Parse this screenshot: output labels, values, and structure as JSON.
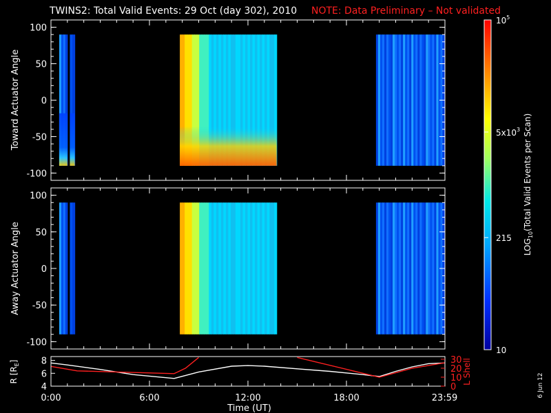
{
  "title": {
    "main": "TWINS2: Total Valid Events: 29 Oct (day 302), 2010",
    "note": "NOTE: Data Preliminary – Not validated",
    "note_color": "#ff2020"
  },
  "stamp": "6 Jun 12",
  "chart_data": [
    {
      "type": "heatmap",
      "ylabel": "Toward Actuator Angle",
      "ylim": [
        -110,
        110
      ],
      "yticks": [
        "100",
        "50",
        "0",
        "-50",
        "-100"
      ],
      "y_range_of_data": [
        -90,
        90
      ],
      "data_intervals_hours": [
        [
          0.5,
          1.0
        ],
        [
          1.15,
          1.45
        ],
        [
          7.85,
          13.75
        ],
        [
          19.8,
          23.98
        ]
      ],
      "level_note": "log10 counts; edges near -90 reach ~1e4-1e5 in the 8-14 UT interval"
    },
    {
      "type": "heatmap",
      "ylabel": "Away Actuator Angle",
      "ylim": [
        -110,
        110
      ],
      "yticks": [
        "100",
        "50",
        "0",
        "-50",
        "-100"
      ],
      "y_range_of_data": [
        -90,
        90
      ],
      "data_intervals_hours": [
        [
          0.5,
          1.0
        ],
        [
          1.15,
          1.45
        ],
        [
          7.85,
          13.75
        ],
        [
          19.8,
          23.98
        ]
      ]
    },
    {
      "type": "line",
      "ylabel_left": "R [R",
      "ylabel_left_sub": "E",
      "ylabel_left_end": "]",
      "ylabel_right": "L Shell",
      "ylim_left": [
        4,
        8.6
      ],
      "yticks_left": [
        "8",
        "6",
        "4"
      ],
      "ylim_right": [
        0,
        33
      ],
      "yticks_right": [
        "30",
        "20",
        "10",
        "0"
      ],
      "xlabel": "Time (UT)",
      "xticks": [
        "0:00",
        "6:00",
        "12:00",
        "18:00",
        "23:59"
      ],
      "xtick_values": [
        0,
        6,
        12,
        18,
        23.98
      ],
      "series": [
        {
          "color": "#ffffff",
          "x": [
            0,
            1,
            3,
            5,
            7.5,
            9,
            11,
            12,
            13,
            15,
            17,
            19,
            20,
            21,
            22,
            23,
            24
          ],
          "y": [
            7.6,
            7.3,
            6.6,
            5.8,
            5.2,
            6.2,
            7.1,
            7.2,
            7.1,
            6.7,
            6.3,
            5.8,
            5.5,
            6.3,
            7.0,
            7.5,
            7.6
          ]
        },
        {
          "color": "#ff2020",
          "x": [
            0,
            1.6,
            7.5,
            8.2,
            9.0
          ],
          "y2": [
            22,
            17,
            14,
            20,
            32
          ]
        },
        {
          "color": "#ff2020",
          "x": [
            15.0,
            20.0,
            22.0,
            23.98
          ],
          "y2": [
            32,
            10,
            20,
            26
          ]
        }
      ]
    }
  ],
  "colorbar": {
    "label": "LOG",
    "label_sub": "10",
    "label_rest": "(Total Valid Events per Scan)",
    "ticks": [
      {
        "pos": 1.0,
        "text": "10",
        "sup": "5"
      },
      {
        "pos": 0.66,
        "text": "5x10",
        "sup": "3"
      },
      {
        "pos": 0.34,
        "text": "215",
        "sup": ""
      },
      {
        "pos": 0.0,
        "text": "10",
        "sup": ""
      }
    ]
  }
}
